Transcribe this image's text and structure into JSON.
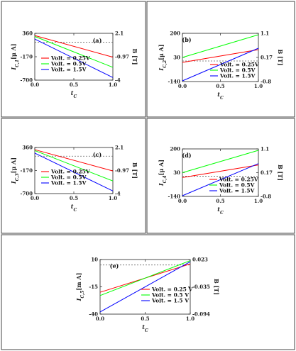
{
  "chart_data": [
    {
      "type": "line",
      "panel_label": "(a)",
      "xlabel": "t_C",
      "ylabel": "I_{C,1}[μ A]",
      "y2label": "B [T]",
      "xlim": [
        0,
        1
      ],
      "ylim": [
        -700,
        360
      ],
      "x_ticks": [
        "0.0",
        "0.5",
        "1.0"
      ],
      "y_ticks": [
        "360",
        "-170",
        "-700"
      ],
      "y2_ticks": [
        "2.1",
        "-0.97",
        "-4"
      ],
      "dashed_y": 160,
      "legend": "bottom-left",
      "x": [
        0,
        1
      ],
      "series": [
        {
          "name": "Volt. = 0.25V",
          "color": "#ff0000",
          "values": [
            310,
            -180
          ]
        },
        {
          "name": "Volt. = 0.5V",
          "color": "#00ff00",
          "values": [
            290,
            -410
          ]
        },
        {
          "name": "Volt. = 1.5V",
          "color": "#0000ff",
          "values": [
            230,
            -640
          ]
        }
      ]
    },
    {
      "type": "line",
      "panel_label": "(b)",
      "xlabel": "t_C",
      "ylabel": "I_{C,2}[μ A]",
      "y2label": "B [T]",
      "xlim": [
        0,
        1
      ],
      "ylim": [
        -140,
        200
      ],
      "x_ticks": [
        "0.0",
        "0.5",
        "1.0"
      ],
      "y_ticks": [
        "200",
        "30",
        "-140"
      ],
      "y2_ticks": [
        "1.1",
        "0.17",
        "-0.8"
      ],
      "dashed_y": 5,
      "legend": "bottom-right",
      "x": [
        0,
        1
      ],
      "series": [
        {
          "name": "Volt. = 0.25V",
          "color": "#ff0000",
          "values": [
            -5,
            85
          ]
        },
        {
          "name": "Volt. = 0.5V",
          "color": "#00ff00",
          "values": [
            30,
            190
          ]
        },
        {
          "name": "Volt. = 1.5V",
          "color": "#0000ff",
          "values": [
            -135,
            95
          ]
        }
      ]
    },
    {
      "type": "line",
      "panel_label": "(c)",
      "xlabel": "t_C",
      "ylabel": "I_{C,3}[μ A]",
      "y2label": "B [T]",
      "xlim": [
        0,
        1
      ],
      "ylim": [
        -700,
        360
      ],
      "x_ticks": [
        "0.0",
        "0.5",
        "1.0"
      ],
      "y_ticks": [
        "360",
        "-170",
        "-700"
      ],
      "y2_ticks": [
        "2.1",
        "-0.97",
        "-4"
      ],
      "dashed_y": 160,
      "legend": "bottom-left",
      "x": [
        0,
        1
      ],
      "series": [
        {
          "name": "Volt. = 0.25V",
          "color": "#ff0000",
          "values": [
            310,
            -180
          ]
        },
        {
          "name": "Volt. = 0.5V",
          "color": "#00ff00",
          "values": [
            290,
            -410
          ]
        },
        {
          "name": "Volt. = 1.5V",
          "color": "#0000ff",
          "values": [
            230,
            -640
          ]
        }
      ]
    },
    {
      "type": "line",
      "panel_label": "(d)",
      "xlabel": "t_C",
      "ylabel": "I_{C,4}[μ A]",
      "y2label": "B [T]",
      "xlim": [
        0,
        1
      ],
      "ylim": [
        -140,
        200
      ],
      "x_ticks": [
        "0.0",
        "0.5",
        "1.0"
      ],
      "y_ticks": [
        "200",
        "30",
        "-140"
      ],
      "y2_ticks": [
        "1.1",
        "0.17",
        "-0.8"
      ],
      "dashed_y": 5,
      "legend": "bottom-right",
      "x": [
        0,
        1
      ],
      "series": [
        {
          "name": "Volt. = 0.25V",
          "color": "#ff0000",
          "values": [
            -5,
            85
          ]
        },
        {
          "name": "Volt. = 0.5V",
          "color": "#00ff00",
          "values": [
            30,
            190
          ]
        },
        {
          "name": "Volt. = 1.5V",
          "color": "#0000ff",
          "values": [
            -135,
            95
          ]
        }
      ]
    },
    {
      "type": "line",
      "panel_label": "(e)",
      "xlabel": "t_C",
      "ylabel": "I_{C,5}[m A]",
      "y2label": "B [T]",
      "xlim": [
        0,
        1
      ],
      "ylim": [
        -40,
        10
      ],
      "x_ticks": [
        "0.0",
        "0.5",
        "1.0"
      ],
      "y_ticks": [
        "10",
        "-15",
        "-40"
      ],
      "y2_ticks": [
        "0.023",
        "-0.035",
        "-0.094"
      ],
      "dashed_y": 5,
      "legend": "bottom-right",
      "x": [
        0,
        1
      ],
      "series": [
        {
          "name": "Volt. = 0.25 V",
          "color": "#ff0000",
          "values": [
            -20,
            6
          ]
        },
        {
          "name": "Volt. = 0.5 V",
          "color": "#00ff00",
          "values": [
            -23,
            9
          ]
        },
        {
          "name": "Volt. = 1.5 V",
          "color": "#0000ff",
          "values": [
            -38,
            8
          ]
        }
      ]
    }
  ]
}
